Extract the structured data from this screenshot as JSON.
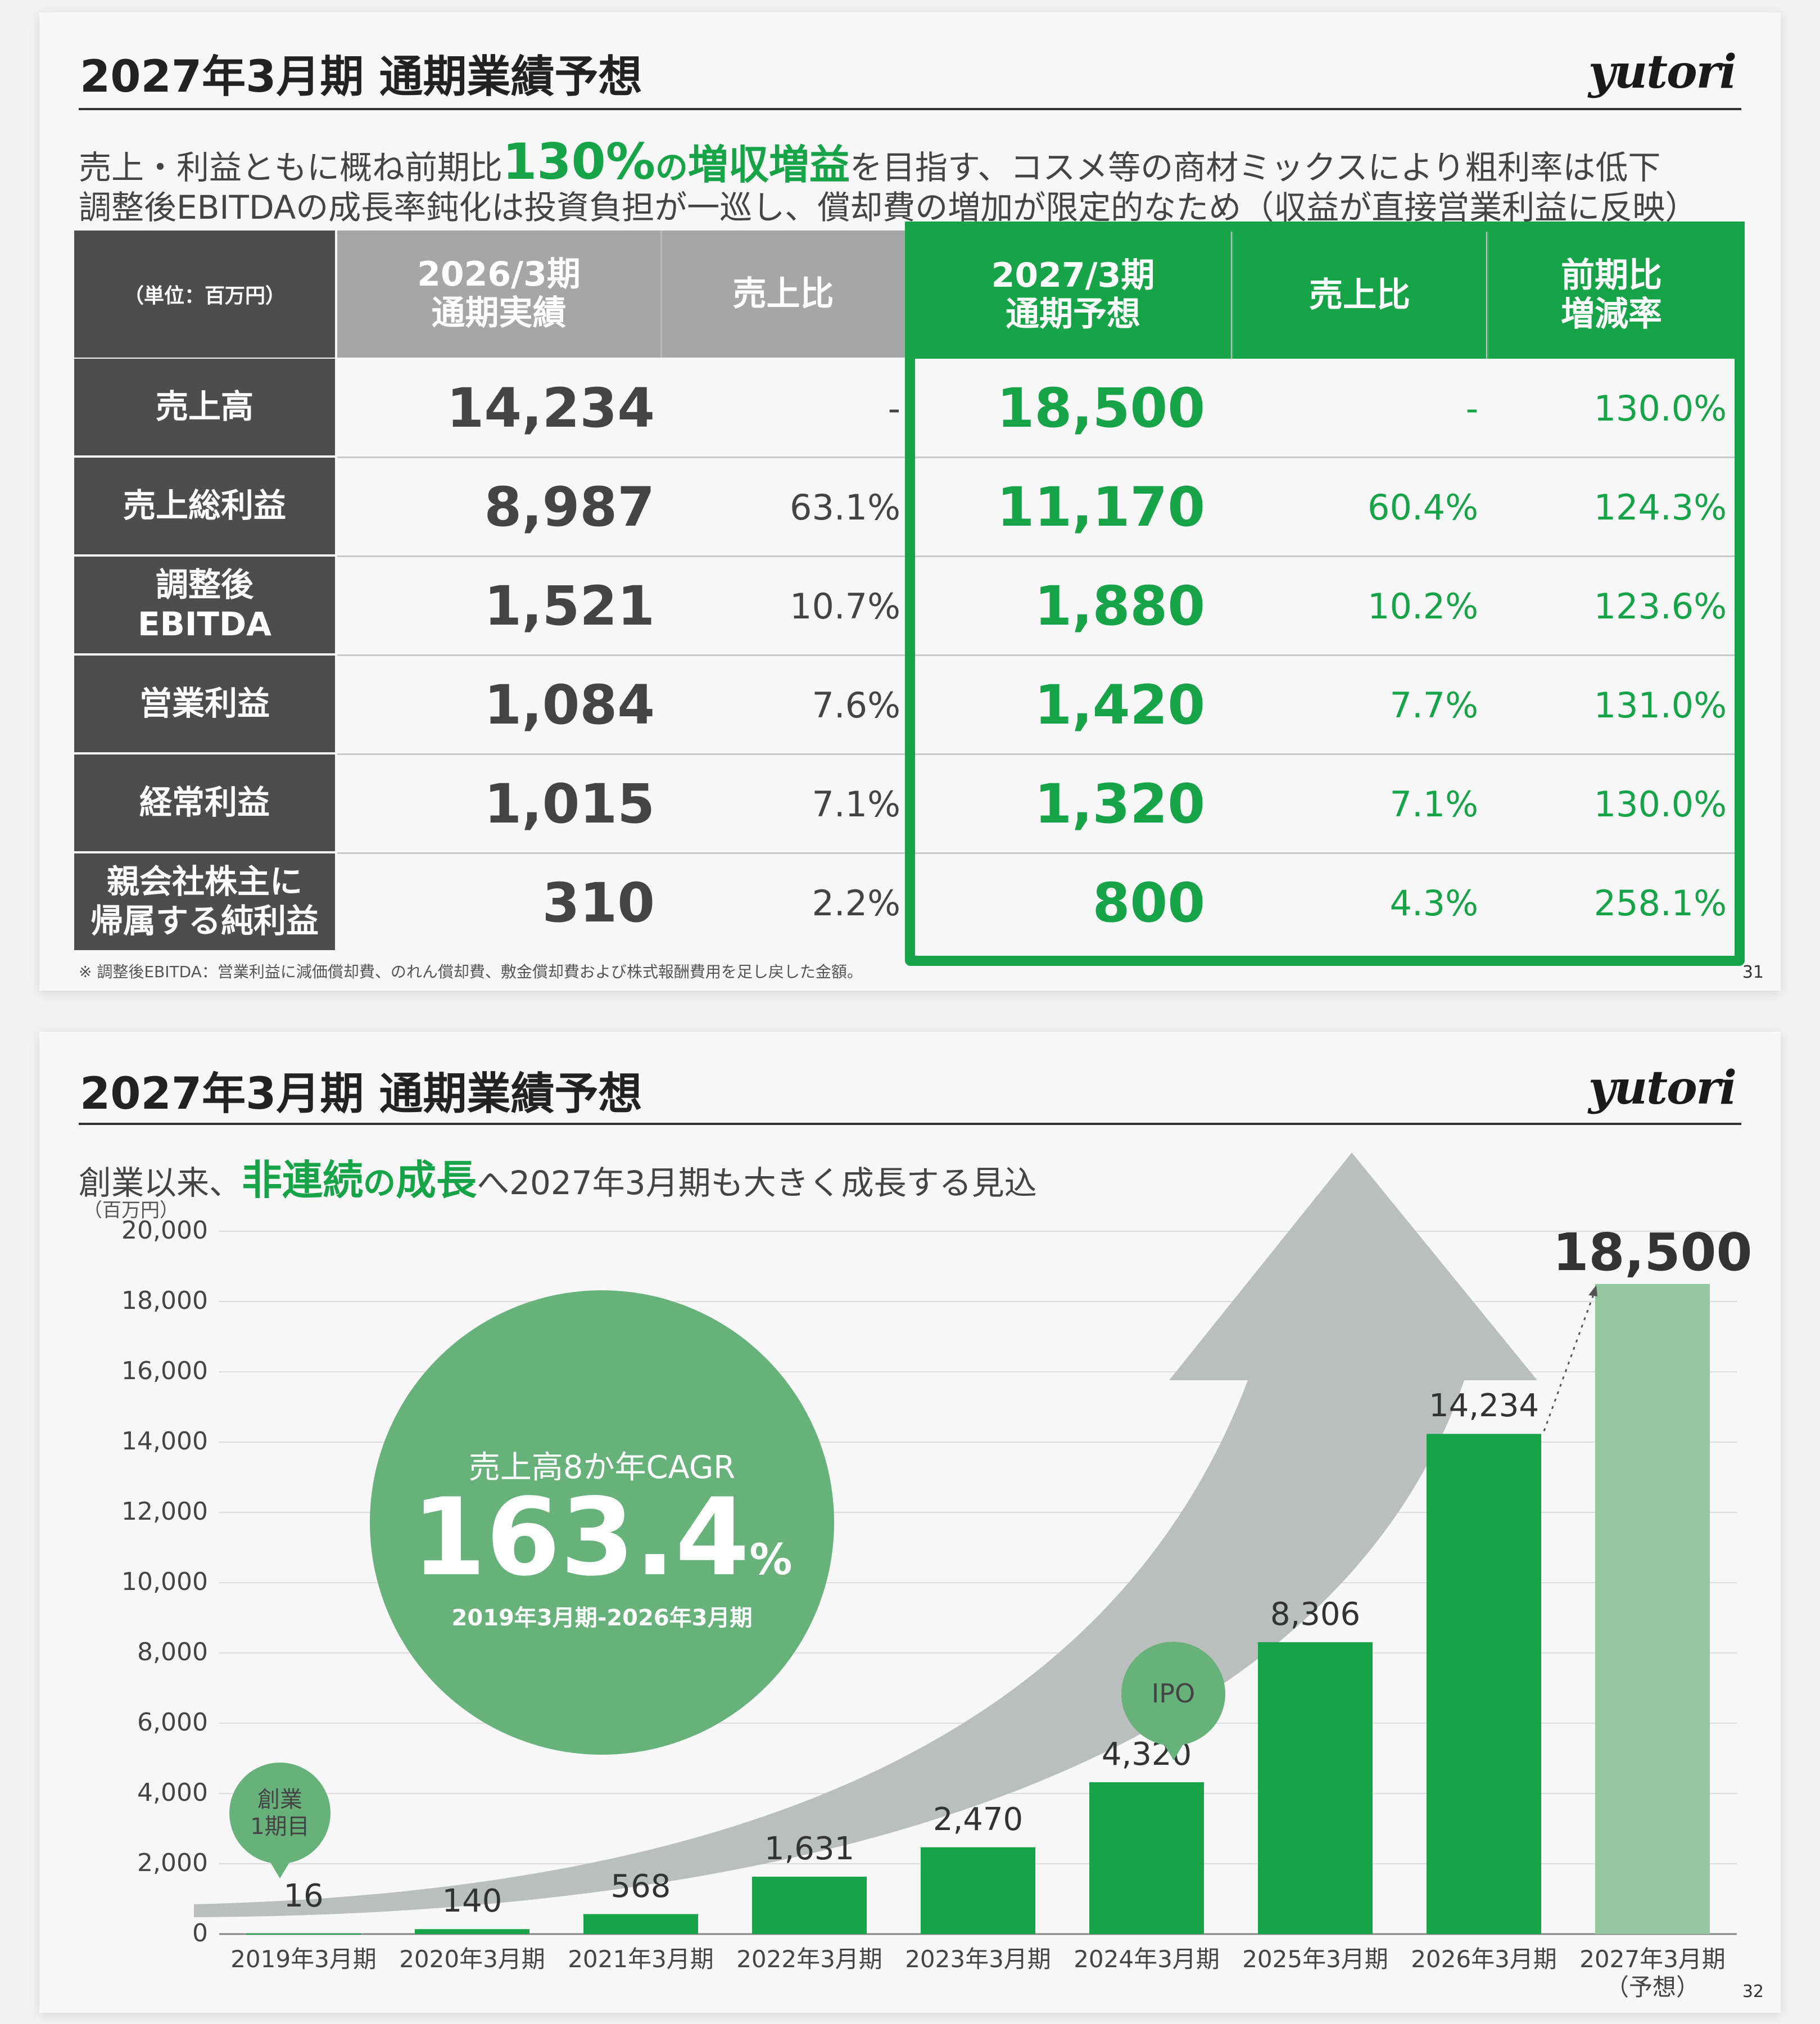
{
  "slide1": {
    "title": "2027年3月期 通期業績予想",
    "logo": "yutori",
    "headline1_pre": "売上・利益ともに概ね前期比",
    "headline1_highlight_num": "130%",
    "headline1_highlight_no": "の",
    "headline1_highlight_word": "増収増益",
    "headline1_post": "を目指す、コスメ等の商材ミックスにより粗利率は低下",
    "headline2": "調整後EBITDAの成長率鈍化は投資負担が一巡し、償却費の増加が限定的なため（収益が直接営業利益に反映）",
    "table": {
      "unit": "（単位：百万円）",
      "col_prev_1": "2026/3期",
      "col_prev_2": "通期実績",
      "col_prev_ratio": "売上比",
      "col_fc_1": "2027/3期",
      "col_fc_2": "通期予想",
      "col_fc_ratio": "売上比",
      "col_yoy_1": "前期比",
      "col_yoy_2": "増減率",
      "rows": [
        {
          "label1": "売上高",
          "label2": "",
          "prev": "14,234",
          "prev_ratio": "-",
          "fc": "18,500",
          "fc_ratio": "-",
          "yoy": "130.0%"
        },
        {
          "label1": "売上総利益",
          "label2": "",
          "prev": "8,987",
          "prev_ratio": "63.1%",
          "fc": "11,170",
          "fc_ratio": "60.4%",
          "yoy": "124.3%"
        },
        {
          "label1": "調整後",
          "label2": "EBITDA",
          "prev": "1,521",
          "prev_ratio": "10.7%",
          "fc": "1,880",
          "fc_ratio": "10.2%",
          "yoy": "123.6%"
        },
        {
          "label1": "営業利益",
          "label2": "",
          "prev": "1,084",
          "prev_ratio": "7.6%",
          "fc": "1,420",
          "fc_ratio": "7.7%",
          "yoy": "131.0%"
        },
        {
          "label1": "経常利益",
          "label2": "",
          "prev": "1,015",
          "prev_ratio": "7.1%",
          "fc": "1,320",
          "fc_ratio": "7.1%",
          "yoy": "130.0%"
        },
        {
          "label1": "親会社株主に",
          "label2": "帰属する純利益",
          "prev": "310",
          "prev_ratio": "2.2%",
          "fc": "800",
          "fc_ratio": "4.3%",
          "yoy": "258.1%"
        }
      ]
    },
    "footnote": "※ 調整後EBITDA：営業利益に減価償却費、のれん償却費、敷金償却費および株式報酬費用を足し戻した金額。",
    "page": "31"
  },
  "slide2": {
    "title": "2027年3月期 通期業績予想",
    "logo": "yutori",
    "headline_pre": "創業以来、",
    "headline_hl1": "非連続",
    "headline_hl_no": "の",
    "headline_hl2": "成長",
    "headline_post": "へ2027年3月期も大きく成長する見込",
    "cagr_label": "売上高8か年CAGR",
    "cagr_value": "163.4",
    "cagr_unit": "%",
    "cagr_period": "2019年3月期-2026年3月期",
    "bubble_founding_1": "創業",
    "bubble_founding_2": "1期目",
    "bubble_ipo": "IPO",
    "page": "32",
    "colors": {
      "bar": "#17a347",
      "forecast_bar": "#93c79d",
      "circle": "#67b27b",
      "arrow": "#b4b8b6"
    }
  },
  "chart_data": {
    "type": "bar",
    "ylabel": "（百万円）",
    "ylim": [
      0,
      20000
    ],
    "yticks": [
      "0",
      "2,000",
      "4,000",
      "6,000",
      "8,000",
      "10,000",
      "12,000",
      "14,000",
      "16,000",
      "18,000",
      "20,000"
    ],
    "categories": [
      "2019年3月期",
      "2020年3月期",
      "2021年3月期",
      "2022年3月期",
      "2023年3月期",
      "2024年3月期",
      "2025年3月期",
      "2026年3月期",
      "2027年3月期"
    ],
    "category_sub": [
      "",
      "",
      "",
      "",
      "",
      "",
      "",
      "",
      "（予想）"
    ],
    "values": [
      16,
      140,
      568,
      1631,
      2470,
      4320,
      8306,
      14234,
      18500
    ],
    "value_labels": [
      "16",
      "140",
      "568",
      "1,631",
      "2,470",
      "4,320",
      "8,306",
      "14,234",
      "18,500"
    ],
    "forecast_index": 8,
    "grid": true
  }
}
